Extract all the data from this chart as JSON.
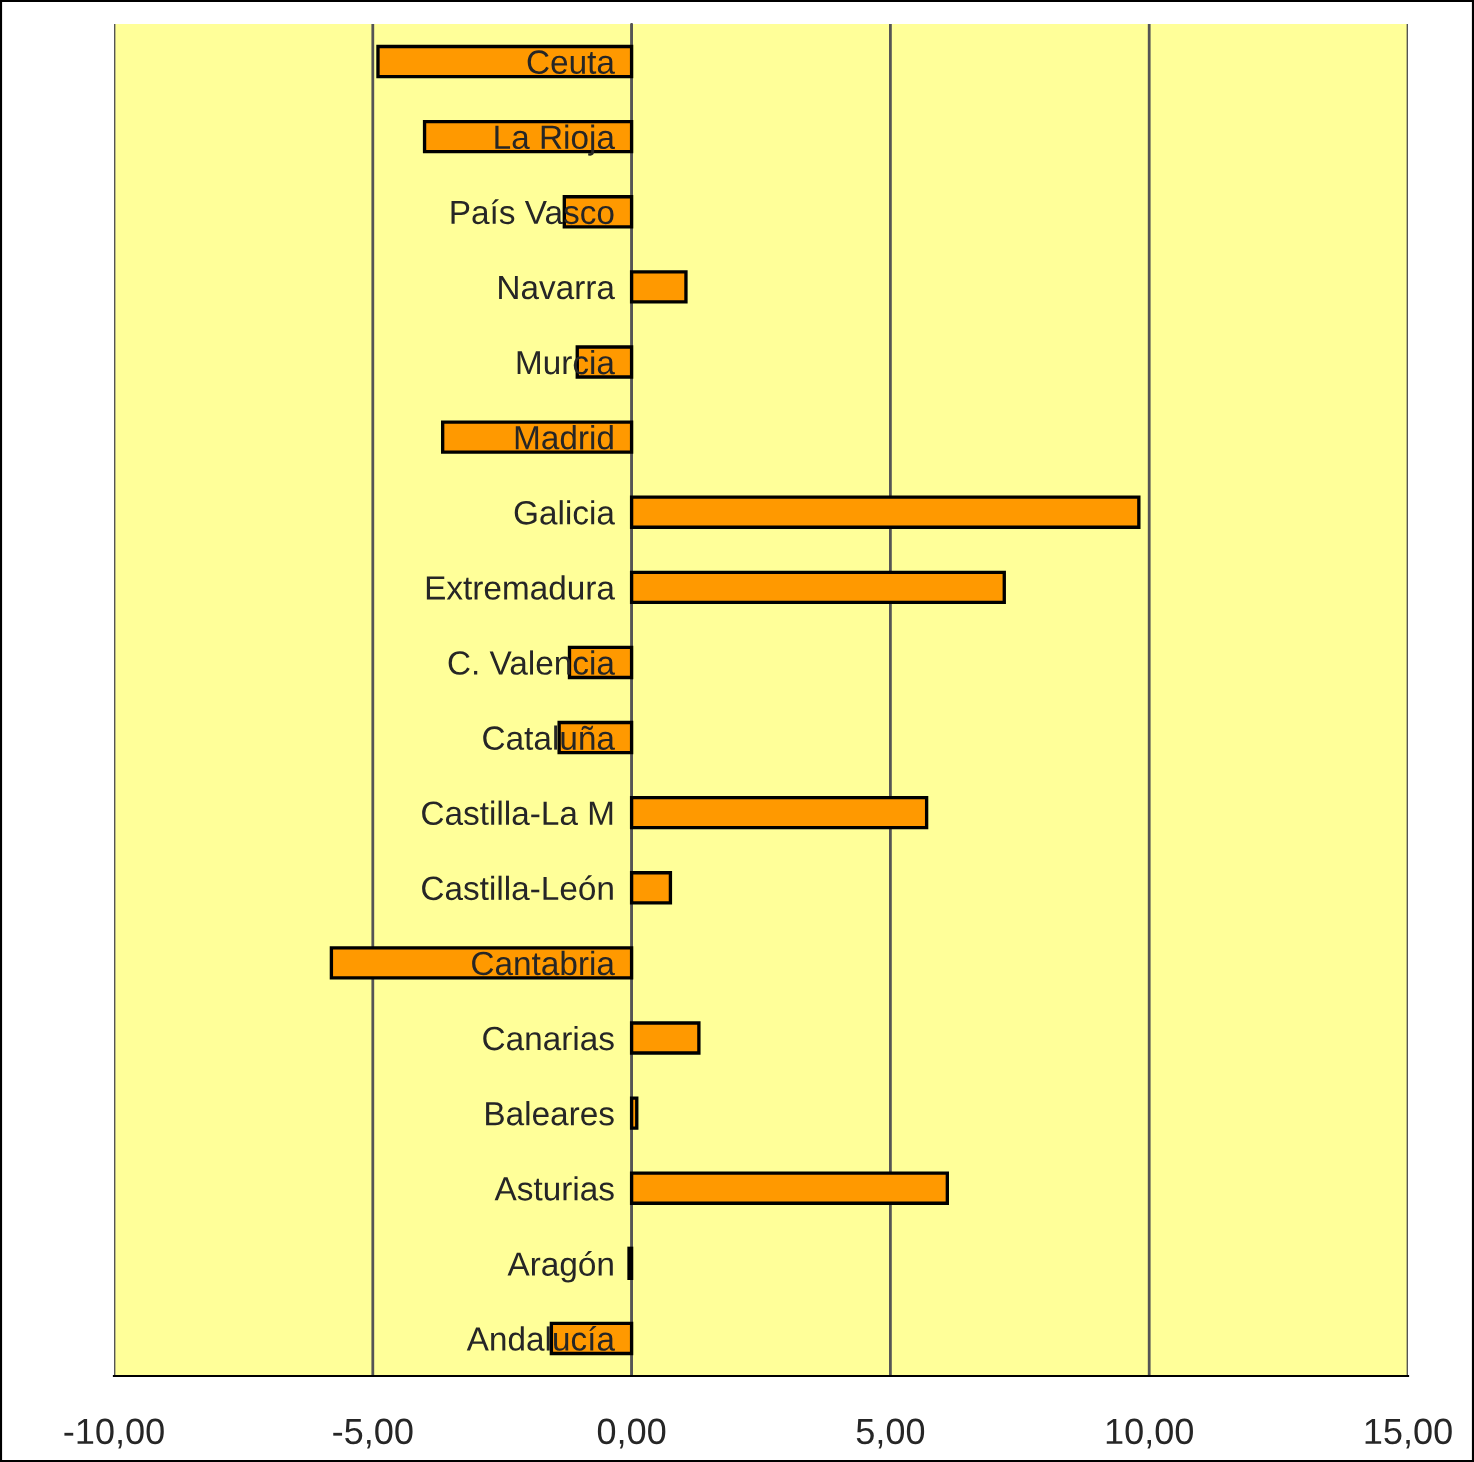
{
  "chart_data": {
    "type": "bar",
    "orientation": "horizontal",
    "categories": [
      "Ceuta",
      "La Rioja",
      "País Vasco",
      "Navarra",
      "Murcia",
      "Madrid",
      "Galicia",
      "Extremadura",
      "C. Valencia",
      "Cataluña",
      "Castilla-La M",
      "Castilla-León",
      "Cantabria",
      "Canarias",
      "Baleares",
      "Asturias",
      "Aragón",
      "Andalucía"
    ],
    "values": [
      -4.9,
      -4.0,
      -1.3,
      1.05,
      -1.05,
      -3.65,
      9.8,
      7.2,
      -1.2,
      -1.4,
      5.7,
      0.75,
      -5.8,
      1.3,
      0.1,
      6.1,
      -0.05,
      -1.55
    ],
    "color": "#ff9900",
    "xlim": [
      -10,
      15
    ],
    "xticks": [
      {
        "value": -10,
        "label": "-10,00"
      },
      {
        "value": -5,
        "label": "-5,00"
      },
      {
        "value": 0,
        "label": "0,00"
      },
      {
        "value": 5,
        "label": "5,00"
      },
      {
        "value": 10,
        "label": "10,00"
      },
      {
        "value": 15,
        "label": "15,00"
      }
    ],
    "grid": "x"
  }
}
